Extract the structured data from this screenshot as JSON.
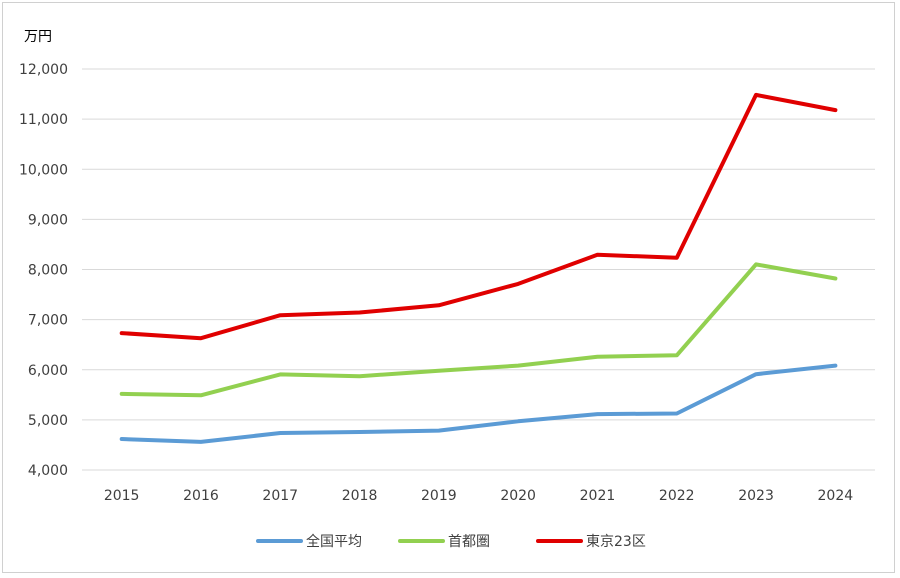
{
  "chart_data": {
    "type": "line",
    "unit_label": "万円",
    "categories": [
      "2015",
      "2016",
      "2017",
      "2018",
      "2019",
      "2020",
      "2021",
      "2022",
      "2023",
      "2024"
    ],
    "ylim": [
      4000,
      12000
    ],
    "yticks": [
      4000,
      5000,
      6000,
      7000,
      8000,
      9000,
      10000,
      11000,
      12000
    ],
    "ytick_labels": [
      "4,000",
      "5,000",
      "6,000",
      "7,000",
      "8,000",
      "9,000",
      "10,000",
      "11,000",
      "12,000"
    ],
    "grid": true,
    "legend_position": "bottom",
    "series": [
      {
        "name": "全国平均",
        "color": "#5b9bd5",
        "values": [
          4618,
          4560,
          4739,
          4759,
          4787,
          4971,
          5115,
          5127,
          5911,
          6082
        ]
      },
      {
        "name": "首都圏",
        "color": "#92d050",
        "values": [
          5518,
          5490,
          5908,
          5871,
          5980,
          6083,
          6260,
          6288,
          8101,
          7820
        ]
      },
      {
        "name": "東京23区",
        "color": "#e00000",
        "values": [
          6732,
          6629,
          7089,
          7142,
          7286,
          7712,
          8293,
          8236,
          11483,
          11181
        ]
      }
    ]
  }
}
